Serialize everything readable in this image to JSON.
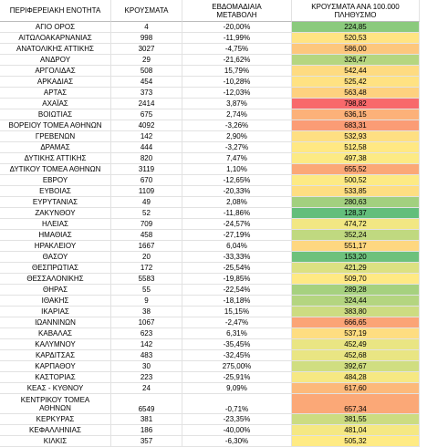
{
  "table": {
    "header": [
      "ΠΕΡΙΦΕΡΕΙΑΚΗ ΕΝΟΤΗΤΑ",
      "ΚΡΟΥΣΜΑΤΑ",
      "ΕΒΔΟΜΑΔΙΑΙΑ\nΜΕΤΑΒΟΛΗ",
      "ΚΡΟΥΣΜΑΤΑ ΑΝΑ 100.000\nΠΛΗΘΥΣΜΟ"
    ],
    "rows": [
      [
        "ΑΓΙΟ ΟΡΟΣ",
        "4",
        "-20,00%",
        "224,85"
      ],
      [
        "ΑΙΤΩΛΟΑΚΑΡΝΑΝΙΑΣ",
        "998",
        "-11,99%",
        "520,53"
      ],
      [
        "ΑΝΑΤΟΛΙΚΗΣ ΑΤΤΙΚΗΣ",
        "3027",
        "-4,75%",
        "586,00"
      ],
      [
        "ΑΝΔΡΟΥ",
        "29",
        "-21,62%",
        "326,47"
      ],
      [
        "ΑΡΓΟΛΙΔΑΣ",
        "508",
        "15,79%",
        "542,44"
      ],
      [
        "ΑΡΚΑΔΙΑΣ",
        "454",
        "-10,28%",
        "525,42"
      ],
      [
        "ΑΡΤΑΣ",
        "373",
        "-12,03%",
        "563,48"
      ],
      [
        "ΑΧΑΪΑΣ",
        "2414",
        "3,87%",
        "798,82"
      ],
      [
        "ΒΟΙΩΤΙΑΣ",
        "675",
        "2,74%",
        "636,15"
      ],
      [
        "ΒΟΡΕΙΟΥ ΤΟΜΕΑ ΑΘΗΝΩΝ",
        "4092",
        "-3,26%",
        "683,31"
      ],
      [
        "ΓΡΕΒΕΝΩΝ",
        "142",
        "2,90%",
        "532,93"
      ],
      [
        "ΔΡΑΜΑΣ",
        "444",
        "-3,27%",
        "512,58"
      ],
      [
        "ΔΥΤΙΚΗΣ ΑΤΤΙΚΗΣ",
        "820",
        "7,47%",
        "497,38"
      ],
      [
        "ΔΥΤΙΚΟΥ ΤΟΜΕΑ ΑΘΗΝΩΝ",
        "3119",
        "1,10%",
        "655,52"
      ],
      [
        "ΕΒΡΟΥ",
        "670",
        "-12,65%",
        "500,52"
      ],
      [
        "ΕΥΒΟΙΑΣ",
        "1109",
        "-20,33%",
        "533,85"
      ],
      [
        "ΕΥΡΥΤΑΝΙΑΣ",
        "49",
        "2,08%",
        "280,63"
      ],
      [
        "ΖΑΚΥΝΘΟΥ",
        "52",
        "-11,86%",
        "128,37"
      ],
      [
        "ΗΛΕΙΑΣ",
        "709",
        "-24,57%",
        "474,72"
      ],
      [
        "ΗΜΑΘΙΑΣ",
        "458",
        "-27,19%",
        "352,24"
      ],
      [
        "ΗΡΑΚΛΕΙΟΥ",
        "1667",
        "6,04%",
        "551,17"
      ],
      [
        "ΘΑΣΟΥ",
        "20",
        "-33,33%",
        "153,20"
      ],
      [
        "ΘΕΣΠΡΩΤΙΑΣ",
        "172",
        "-25,54%",
        "421,29"
      ],
      [
        "ΘΕΣΣΑΛΟΝΙΚΗΣ",
        "5583",
        "-19,85%",
        "509,70"
      ],
      [
        "ΘΗΡΑΣ",
        "55",
        "-22,54%",
        "289,28"
      ],
      [
        "ΙΘΑΚΗΣ",
        "9",
        "-18,18%",
        "324,44"
      ],
      [
        "ΙΚΑΡΙΑΣ",
        "38",
        "15,15%",
        "383,80"
      ],
      [
        "ΙΩΑΝΝΙΝΩΝ",
        "1067",
        "-2,47%",
        "666,65"
      ],
      [
        "ΚΑΒΑΛΑΣ",
        "623",
        "6,31%",
        "537,19"
      ],
      [
        "ΚΑΛΥΜΝΟΥ",
        "142",
        "-35,45%",
        "452,49"
      ],
      [
        "ΚΑΡΔΙΤΣΑΣ",
        "483",
        "-32,45%",
        "452,68"
      ],
      [
        "ΚΑΡΠΑΘΟΥ",
        "30",
        "275,00%",
        "392,67"
      ],
      [
        "ΚΑΣΤΟΡΙΑΣ",
        "223",
        "-25,91%",
        "484,28"
      ],
      [
        "ΚΕΑΣ - ΚΥΘΝΟΥ",
        "24",
        "9,09%",
        "617,60"
      ],
      [
        "ΚΕΝΤΡΙΚΟΥ ΤΟΜΕΑ\nΑΘΗΝΩΝ",
        "6549",
        "-0,71%",
        "657,34"
      ],
      [
        "ΚΕΡΚΥΡΑΣ",
        "381",
        "-23,35%",
        "381,55"
      ],
      [
        "ΚΕΦΑΛΛΗΝΙΑΣ",
        "186",
        "-40,00%",
        "481,04"
      ],
      [
        "ΚΙΛΚΙΣ",
        "357",
        "-6,30%",
        "505,32"
      ]
    ]
  }
}
